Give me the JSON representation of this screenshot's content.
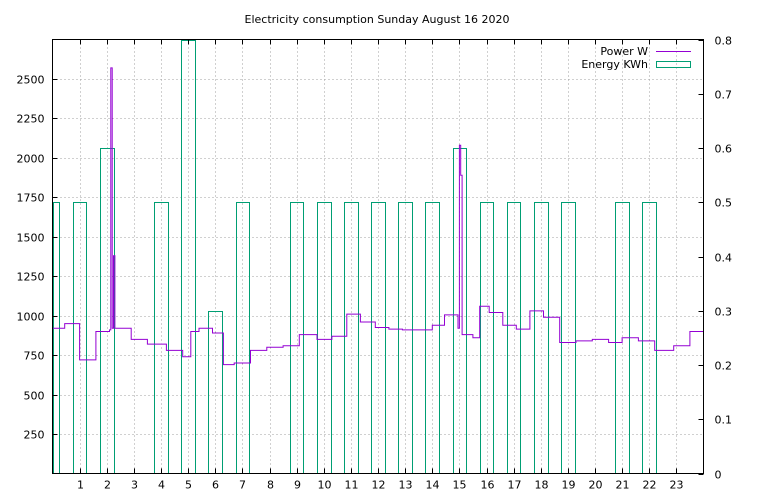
{
  "chart_data": {
    "type": "line",
    "title": "Electricity consumption Sunday August 16 2020",
    "xlabel": "",
    "ylabel": "",
    "y2label": "",
    "xlim": [
      0,
      24
    ],
    "ylim": [
      0,
      2750
    ],
    "y2lim": [
      0,
      0.8
    ],
    "xticks": [
      1,
      2,
      3,
      4,
      5,
      6,
      7,
      8,
      9,
      10,
      11,
      12,
      13,
      14,
      15,
      16,
      17,
      18,
      19,
      20,
      21,
      22,
      23
    ],
    "yticks": [
      250,
      500,
      750,
      1000,
      1250,
      1500,
      1750,
      2000,
      2250,
      2500
    ],
    "y2ticks": [
      0,
      0.1,
      0.2,
      0.3,
      0.4,
      0.5,
      0.6,
      0.7,
      0.8
    ],
    "y2tick_labels": [
      "0",
      "0.1",
      "0.2",
      "0.3",
      "0.4",
      "0.5",
      "0.6",
      "0.7",
      "0.8"
    ],
    "grid": true,
    "legend_position": "top-right",
    "colors": {
      "power": "#9400d3",
      "energy": "#009e73"
    },
    "series": [
      {
        "name": "Power W",
        "axis": "y",
        "style": "steps",
        "points": [
          [
            0,
            920
          ],
          [
            0.45,
            950
          ],
          [
            1.0,
            720
          ],
          [
            1.6,
            900
          ],
          [
            2.1,
            910
          ],
          [
            2.15,
            2570
          ],
          [
            2.2,
            920
          ],
          [
            2.25,
            1380
          ],
          [
            2.3,
            920
          ],
          [
            2.9,
            850
          ],
          [
            3.5,
            820
          ],
          [
            4.2,
            780
          ],
          [
            4.8,
            740
          ],
          [
            5.1,
            900
          ],
          [
            5.4,
            920
          ],
          [
            5.9,
            890
          ],
          [
            6.3,
            690
          ],
          [
            6.7,
            700
          ],
          [
            7.3,
            780
          ],
          [
            7.9,
            800
          ],
          [
            8.5,
            810
          ],
          [
            9.1,
            880
          ],
          [
            9.75,
            850
          ],
          [
            10.3,
            870
          ],
          [
            10.85,
            1010
          ],
          [
            11.35,
            960
          ],
          [
            11.9,
            925
          ],
          [
            12.4,
            915
          ],
          [
            12.9,
            910
          ],
          [
            13.5,
            910
          ],
          [
            14.0,
            940
          ],
          [
            14.45,
            1005
          ],
          [
            14.95,
            920
          ],
          [
            15.0,
            2080
          ],
          [
            15.05,
            1890
          ],
          [
            15.1,
            880
          ],
          [
            15.5,
            860
          ],
          [
            15.75,
            1060
          ],
          [
            16.1,
            1020
          ],
          [
            16.6,
            940
          ],
          [
            17.1,
            915
          ],
          [
            17.6,
            1030
          ],
          [
            18.1,
            990
          ],
          [
            18.7,
            830
          ],
          [
            19.3,
            840
          ],
          [
            19.9,
            850
          ],
          [
            20.5,
            830
          ],
          [
            21.0,
            860
          ],
          [
            21.6,
            840
          ],
          [
            22.2,
            780
          ],
          [
            22.9,
            810
          ],
          [
            23.5,
            900
          ],
          [
            24.0,
            900
          ]
        ]
      },
      {
        "name": "Energy KWh",
        "axis": "y2",
        "style": "boxes",
        "bars": [
          [
            0,
            0.5
          ],
          [
            1,
            0.5
          ],
          [
            2,
            0.6
          ],
          [
            4,
            0.5
          ],
          [
            5,
            0.8
          ],
          [
            6,
            0.3
          ],
          [
            7,
            0.5
          ],
          [
            9,
            0.5
          ],
          [
            10,
            0.5
          ],
          [
            11,
            0.5
          ],
          [
            12,
            0.5
          ],
          [
            13,
            0.5
          ],
          [
            14,
            0.5
          ],
          [
            15,
            0.6
          ],
          [
            16,
            0.5
          ],
          [
            17,
            0.5
          ],
          [
            18,
            0.5
          ],
          [
            19,
            0.5
          ],
          [
            21,
            0.5
          ],
          [
            22,
            0.5
          ]
        ]
      }
    ]
  }
}
